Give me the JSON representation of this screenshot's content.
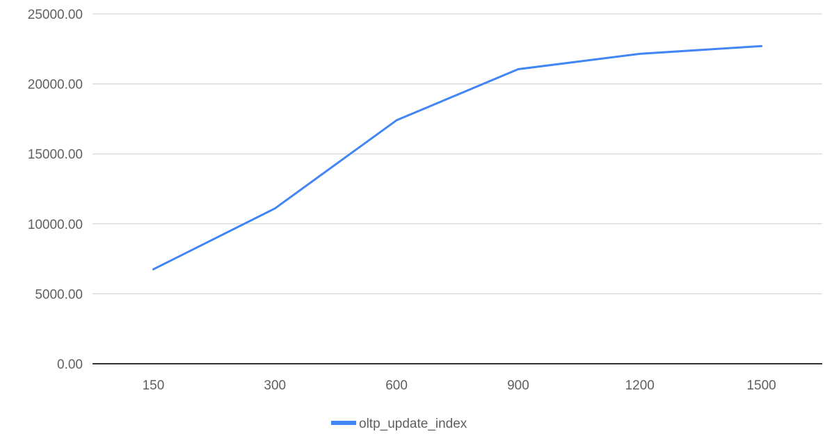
{
  "chart_data": {
    "type": "line",
    "title": "",
    "xlabel": "",
    "ylabel": "",
    "categories": [
      "150",
      "300",
      "600",
      "900",
      "1200",
      "1500"
    ],
    "y_ticks": [
      "0.00",
      "5000.00",
      "10000.00",
      "15000.00",
      "20000.00",
      "25000.00"
    ],
    "ylim": [
      0,
      25000
    ],
    "grid": true,
    "legend_position": "bottom",
    "series": [
      {
        "name": "oltp_update_index",
        "color": "#4285f4",
        "values": [
          6750,
          11100,
          17400,
          21050,
          22150,
          22700
        ]
      }
    ]
  }
}
